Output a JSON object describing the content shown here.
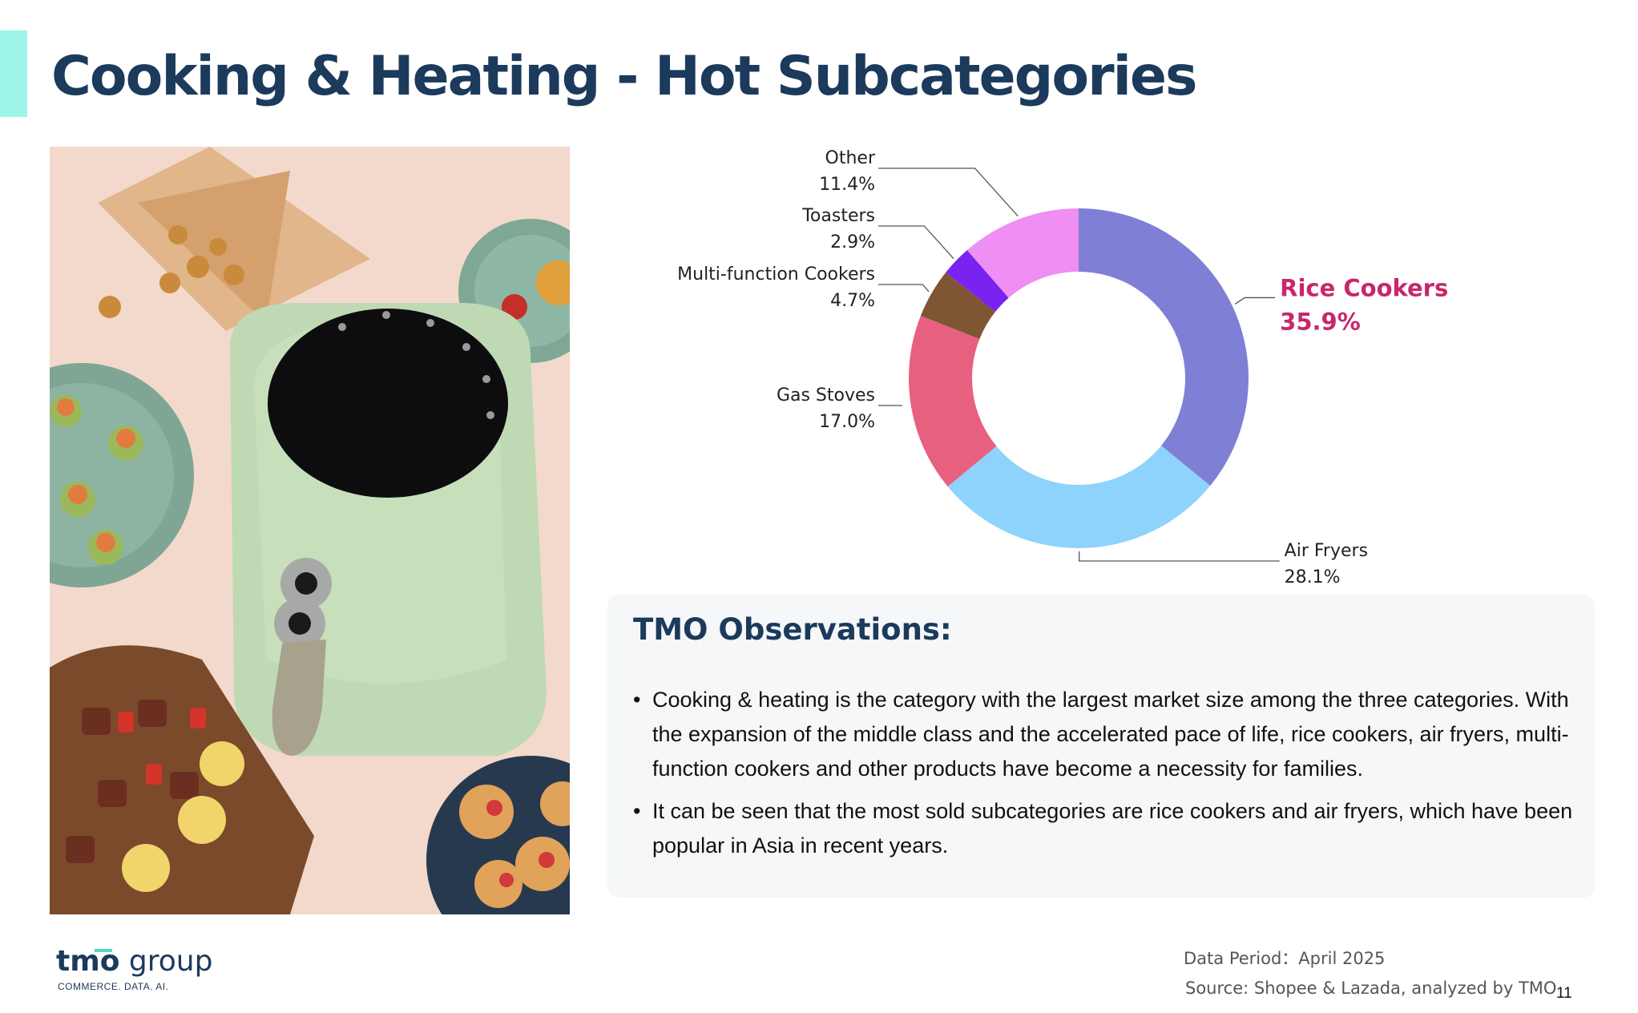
{
  "page": {
    "title": "Cooking & Heating - Hot Subcategories",
    "page_number": "11"
  },
  "photo": {
    "subject": "air-fryer-photo"
  },
  "chart_data": {
    "type": "donut",
    "categories": [
      "Rice Cookers",
      "Air Fryers",
      "Gas Stoves",
      "Multi-function Cookers",
      "Toasters",
      "Other"
    ],
    "values": [
      35.9,
      28.1,
      17.0,
      4.7,
      2.9,
      11.4
    ],
    "value_labels": [
      "35.9%",
      "28.1%",
      "17.0%",
      "4.7%",
      "2.9%",
      "11.4%"
    ],
    "colors": [
      "#7f7fd5",
      "#8dd3fb",
      "#e8607f",
      "#7f5633",
      "#7a22f0",
      "#ef8ef3"
    ],
    "highlight": "Rice Cookers",
    "highlight_color": "#c8276a",
    "start_angle": "12 o'clock",
    "direction": "clockwise",
    "label_positions": [
      "right",
      "bottom-right",
      "left",
      "left",
      "left",
      "left"
    ]
  },
  "observations": {
    "title": "TMO Observations:",
    "bullets": [
      "Cooking & heating is the category with the largest market size among the three categories. With the expansion of the middle class and the accelerated pace of life, rice cookers, air fryers, multi-function cookers and other products have become a necessity for families.",
      "It can be seen that the most sold subcategories are rice cookers and air fryers, which have been popular in Asia in recent years."
    ]
  },
  "footer": {
    "logo_bold": "tmo",
    "logo_light": " group",
    "logo_tagline": "COMMERCE. DATA. AI.",
    "data_period": "Data Period：April 2025",
    "source": "Source: Shopee & Lazada, analyzed by TMO"
  }
}
